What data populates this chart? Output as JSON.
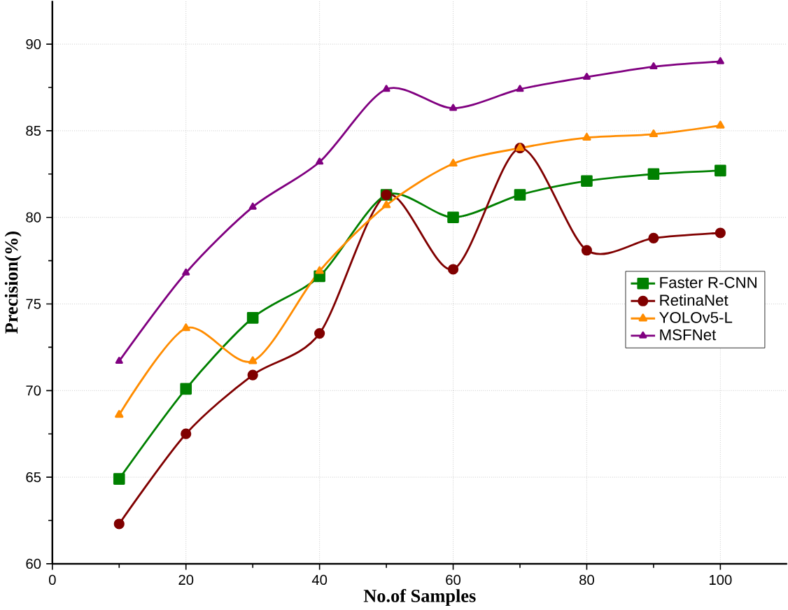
{
  "chart_data": {
    "type": "line",
    "xlabel": "No.of Samples",
    "ylabel": "Precision(%)",
    "x": [
      10,
      20,
      30,
      40,
      50,
      60,
      70,
      80,
      90,
      100
    ],
    "series": [
      {
        "name": "Faster R-CNN",
        "color": "#008000",
        "marker": "square",
        "values": [
          64.9,
          70.1,
          74.2,
          76.6,
          81.3,
          80.0,
          81.3,
          82.1,
          82.5,
          82.7
        ]
      },
      {
        "name": "RetinaNet",
        "color": "#800000",
        "marker": "circle",
        "values": [
          62.3,
          67.5,
          70.9,
          73.3,
          81.3,
          77.0,
          84.0,
          78.1,
          78.8,
          79.1
        ]
      },
      {
        "name": "YOLOv5-L",
        "color": "#ff8c00",
        "marker": "triangle",
        "values": [
          68.6,
          73.6,
          71.7,
          76.9,
          80.7,
          83.1,
          84.0,
          84.6,
          84.8,
          85.3
        ]
      },
      {
        "name": "MSFNet",
        "color": "#800080",
        "marker": "triangle",
        "values": [
          71.7,
          76.8,
          80.6,
          83.2,
          87.4,
          86.3,
          87.4,
          88.1,
          88.7,
          89.0
        ]
      }
    ],
    "xlim": [
      0,
      110
    ],
    "ylim": [
      60,
      92.5
    ],
    "xticks": [
      0,
      20,
      40,
      60,
      80,
      100
    ],
    "yticks": [
      60,
      65,
      70,
      75,
      80,
      85,
      90
    ],
    "grid": true,
    "legend": "right",
    "line_style": "solid"
  }
}
